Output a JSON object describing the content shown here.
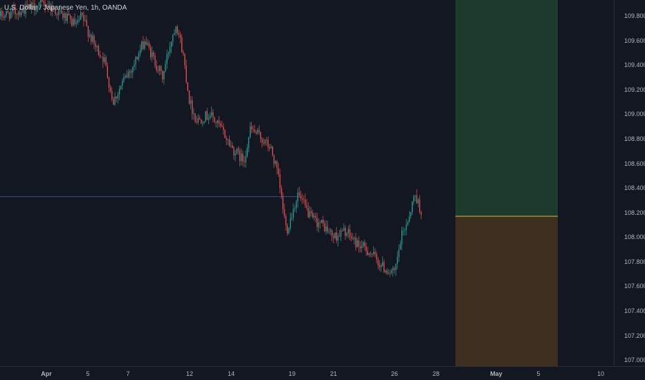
{
  "chart_data": {
    "type": "candlestick",
    "title": "U.S. Dollar / Japanese Yen, 1h, OANDA",
    "symbol": "U.S. Dollar / Japanese Yen",
    "interval": "1h",
    "exchange": "OANDA",
    "ylim": [
      106.95,
      109.93
    ],
    "y_ticks": [
      "109.800",
      "109.600",
      "109.400",
      "109.200",
      "109.000",
      "108.800",
      "108.600",
      "108.400",
      "108.200",
      "108.000",
      "107.800",
      "107.600",
      "107.400",
      "107.200",
      "107.000"
    ],
    "x_ticks": [
      "Apr",
      "5",
      "7",
      "12",
      "14",
      "19",
      "21",
      "26",
      "28",
      "May",
      "5",
      "10"
    ],
    "price_path": [
      {
        "t": 0.0,
        "price": 109.8
      },
      {
        "t": 2.0,
        "price": 109.9
      },
      {
        "t": 3.4,
        "price": 109.72
      },
      {
        "t": 3.6,
        "price": 109.8
      },
      {
        "t": 4.2,
        "price": 109.55
      },
      {
        "t": 4.6,
        "price": 109.45
      },
      {
        "t": 5.0,
        "price": 109.1
      },
      {
        "t": 5.4,
        "price": 109.25
      },
      {
        "t": 5.9,
        "price": 109.4
      },
      {
        "t": 6.4,
        "price": 109.6
      },
      {
        "t": 7.2,
        "price": 109.3
      },
      {
        "t": 7.5,
        "price": 109.55
      },
      {
        "t": 7.8,
        "price": 109.75
      },
      {
        "t": 8.1,
        "price": 109.5
      },
      {
        "t": 8.4,
        "price": 109.1
      },
      {
        "t": 8.7,
        "price": 108.95
      },
      {
        "t": 9.3,
        "price": 109.0
      },
      {
        "t": 9.8,
        "price": 108.88
      },
      {
        "t": 10.3,
        "price": 108.72
      },
      {
        "t": 10.8,
        "price": 108.62
      },
      {
        "t": 11.1,
        "price": 108.88
      },
      {
        "t": 11.5,
        "price": 108.82
      },
      {
        "t": 12.0,
        "price": 108.72
      },
      {
        "t": 12.3,
        "price": 108.52
      },
      {
        "t": 12.7,
        "price": 108.05
      },
      {
        "t": 13.2,
        "price": 108.35
      },
      {
        "t": 13.8,
        "price": 108.15
      },
      {
        "t": 14.3,
        "price": 108.1
      },
      {
        "t": 14.8,
        "price": 108.0
      },
      {
        "t": 15.3,
        "price": 108.05
      },
      {
        "t": 15.8,
        "price": 107.95
      },
      {
        "t": 16.4,
        "price": 107.88
      },
      {
        "t": 17.0,
        "price": 107.75
      },
      {
        "t": 17.5,
        "price": 107.7
      },
      {
        "t": 17.8,
        "price": 108.0
      },
      {
        "t": 18.1,
        "price": 108.15
      },
      {
        "t": 18.4,
        "price": 108.35
      },
      {
        "t": 18.7,
        "price": 108.2
      }
    ],
    "horizontal_line": {
      "price": 108.33
    },
    "position_tool": {
      "type": "long",
      "entry": 108.17,
      "target": 109.93,
      "stop": 106.95,
      "profit_color": "#1e3a2d",
      "loss_color": "#3d2e1e",
      "entry_line_color": "#d0bc4a"
    },
    "grid": false,
    "legend": "none"
  },
  "colors": {
    "background": "#131722",
    "up": "#26a69a",
    "down": "#ef5350",
    "text": "#b2b5be",
    "horizontal_line": "#3a4f7a",
    "axis_border": "#2a2e39"
  }
}
